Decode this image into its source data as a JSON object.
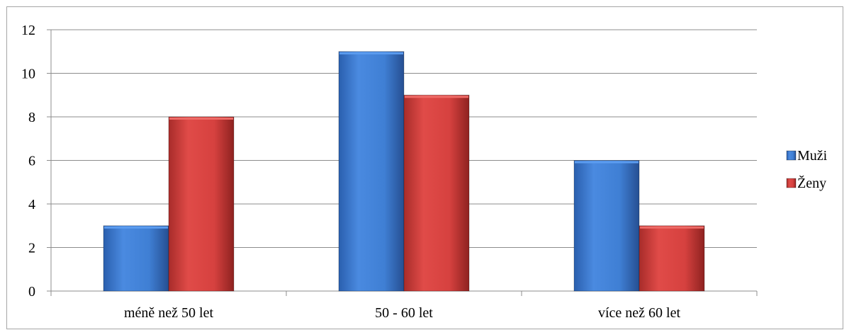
{
  "chart_data": {
    "type": "bar",
    "categories": [
      "méně než 50 let",
      "50 - 60 let",
      "více než 60 let"
    ],
    "series": [
      {
        "name": "Muži",
        "values": [
          3,
          11,
          6
        ],
        "color": "#3f7fd4"
      },
      {
        "name": "Ženy",
        "values": [
          8,
          9,
          3
        ],
        "color": "#d6413f"
      }
    ],
    "ylim": [
      0,
      12
    ],
    "yticks": [
      "0",
      "2",
      "4",
      "6",
      "8",
      "10",
      "12"
    ],
    "grid": true,
    "legend": "right"
  }
}
